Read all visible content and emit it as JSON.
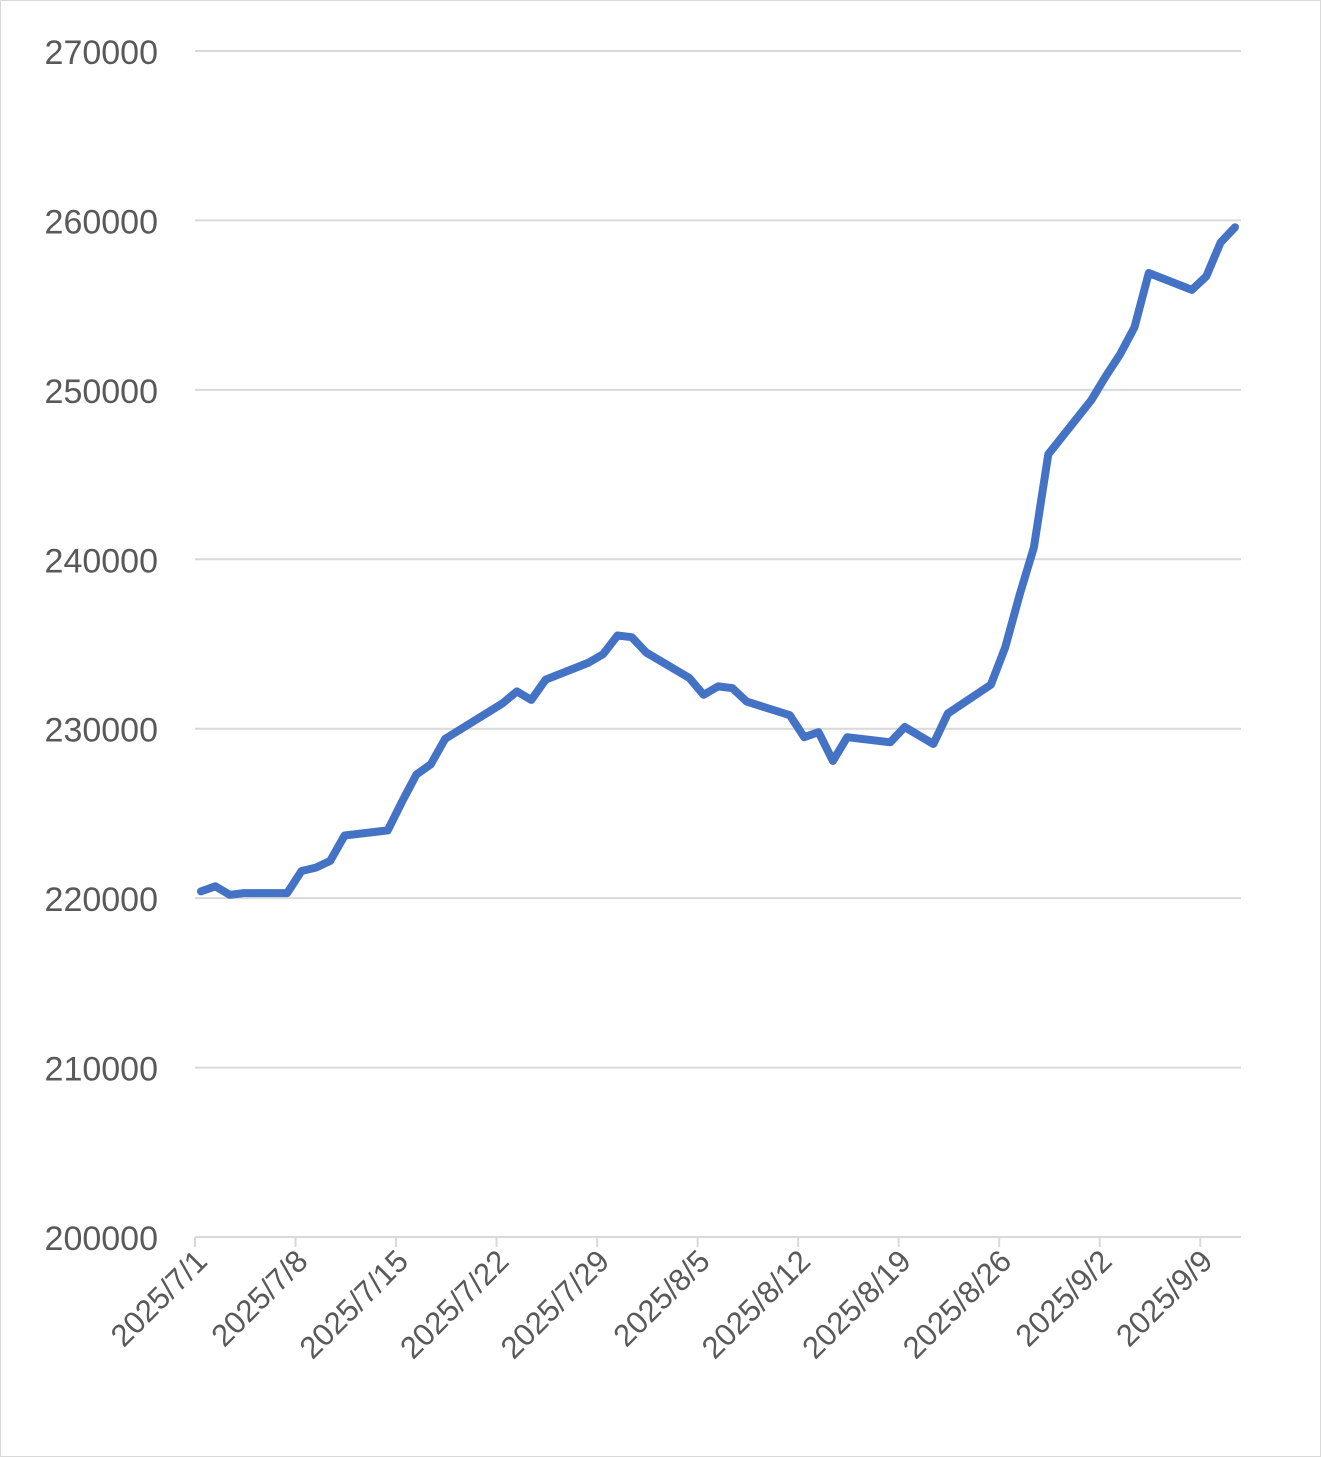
{
  "chart_data": {
    "type": "line",
    "title": "",
    "xlabel": "",
    "ylabel": "",
    "ylim": [
      200000,
      270000
    ],
    "y_ticks": [
      200000,
      210000,
      220000,
      230000,
      240000,
      250000,
      260000,
      270000
    ],
    "x_range": [
      "2025-07-01",
      "2025-09-11"
    ],
    "x_tick_labels": [
      {
        "date": "2025-07-01",
        "label": "2025/7/1"
      },
      {
        "date": "2025-07-08",
        "label": "2025/7/8"
      },
      {
        "date": "2025-07-15",
        "label": "2025/7/15"
      },
      {
        "date": "2025-07-22",
        "label": "2025/7/22"
      },
      {
        "date": "2025-07-29",
        "label": "2025/7/29"
      },
      {
        "date": "2025-08-05",
        "label": "2025/8/5"
      },
      {
        "date": "2025-08-12",
        "label": "2025/8/12"
      },
      {
        "date": "2025-08-19",
        "label": "2025/8/19"
      },
      {
        "date": "2025-08-26",
        "label": "2025/8/26"
      },
      {
        "date": "2025-09-02",
        "label": "2025/9/2"
      },
      {
        "date": "2025-09-09",
        "label": "2025/9/9"
      }
    ],
    "grid": true,
    "colors": {
      "line": "#4472C4",
      "grid": "#d9d9d9",
      "axis": "#d9d9d9",
      "text": "#595959"
    },
    "series": [
      {
        "points": [
          [
            "2025-07-01",
            220400
          ],
          [
            "2025-07-02",
            220700
          ],
          [
            "2025-07-03",
            220200
          ],
          [
            "2025-07-04",
            220300
          ],
          [
            "2025-07-07",
            220300
          ],
          [
            "2025-07-08",
            221600
          ],
          [
            "2025-07-09",
            221800
          ],
          [
            "2025-07-10",
            222200
          ],
          [
            "2025-07-11",
            223700
          ],
          [
            "2025-07-14",
            224000
          ],
          [
            "2025-07-15",
            225700
          ],
          [
            "2025-07-16",
            227300
          ],
          [
            "2025-07-17",
            227900
          ],
          [
            "2025-07-18",
            229400
          ],
          [
            "2025-07-22",
            231500
          ],
          [
            "2025-07-23",
            232200
          ],
          [
            "2025-07-24",
            231700
          ],
          [
            "2025-07-25",
            232900
          ],
          [
            "2025-07-28",
            233900
          ],
          [
            "2025-07-29",
            234400
          ],
          [
            "2025-07-30",
            235500
          ],
          [
            "2025-07-31",
            235400
          ],
          [
            "2025-08-01",
            234500
          ],
          [
            "2025-08-04",
            233000
          ],
          [
            "2025-08-05",
            232000
          ],
          [
            "2025-08-06",
            232500
          ],
          [
            "2025-08-07",
            232400
          ],
          [
            "2025-08-08",
            231600
          ],
          [
            "2025-08-11",
            230800
          ],
          [
            "2025-08-12",
            229500
          ],
          [
            "2025-08-13",
            229800
          ],
          [
            "2025-08-14",
            228100
          ],
          [
            "2025-08-15",
            229500
          ],
          [
            "2025-08-18",
            229200
          ],
          [
            "2025-08-19",
            230100
          ],
          [
            "2025-08-21",
            229100
          ],
          [
            "2025-08-22",
            230900
          ],
          [
            "2025-08-25",
            232600
          ],
          [
            "2025-08-26",
            234800
          ],
          [
            "2025-08-27",
            237900
          ],
          [
            "2025-08-28",
            240700
          ],
          [
            "2025-08-29",
            246200
          ],
          [
            "2025-09-01",
            249400
          ],
          [
            "2025-09-02",
            250800
          ],
          [
            "2025-09-03",
            252100
          ],
          [
            "2025-09-04",
            253700
          ],
          [
            "2025-09-05",
            256900
          ],
          [
            "2025-09-08",
            255900
          ],
          [
            "2025-09-09",
            256700
          ],
          [
            "2025-09-10",
            258700
          ],
          [
            "2025-09-11",
            259600
          ]
        ]
      }
    ]
  }
}
